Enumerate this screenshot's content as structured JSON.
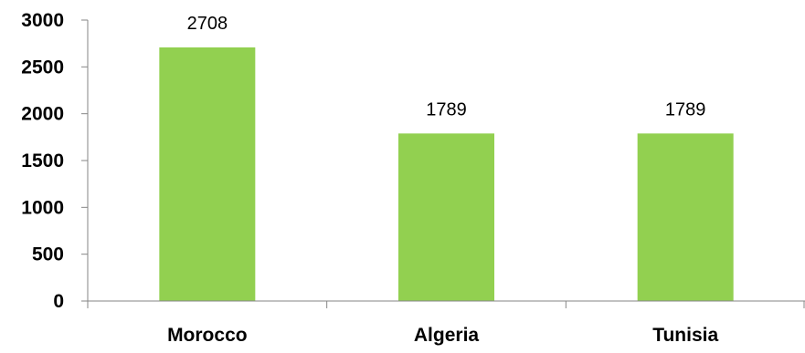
{
  "chart_data": {
    "type": "bar",
    "categories": [
      "Morocco",
      "Algeria",
      "Tunisia"
    ],
    "values": [
      2708,
      1789,
      1789
    ],
    "data_labels": [
      "2708",
      "1789",
      "1789"
    ],
    "yticks": [
      0,
      500,
      1000,
      1500,
      2000,
      2500,
      3000
    ],
    "ytick_labels": [
      "0",
      "500",
      "1000",
      "1500",
      "2000",
      "2500",
      "3000"
    ],
    "ylim": [
      0,
      3000
    ],
    "grid": false,
    "legend": "none",
    "colors": {
      "bar": "#92d050",
      "axis": "#868686"
    }
  }
}
